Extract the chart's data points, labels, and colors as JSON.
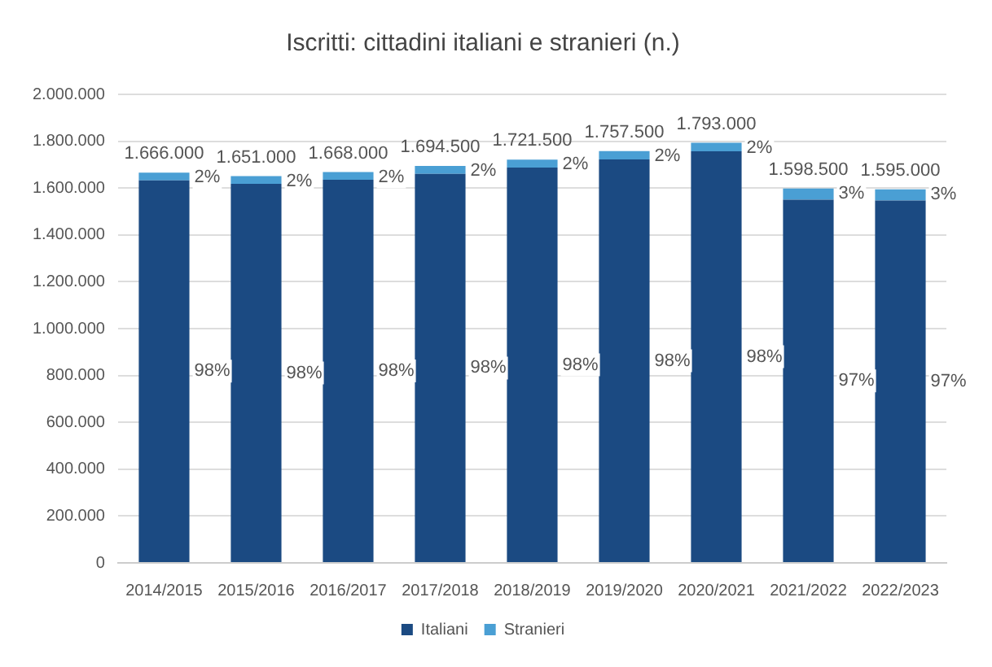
{
  "chart_data": {
    "type": "bar",
    "title": "Iscritti: cittadini italiani e stranieri (n.)",
    "stacked": true,
    "legend": "bottom",
    "grid": "y",
    "categories": [
      "2014/2015",
      "2015/2016",
      "2016/2017",
      "2017/2018",
      "2018/2019",
      "2019/2020",
      "2020/2021",
      "2021/2022",
      "2022/2023"
    ],
    "series": [
      {
        "name": "Italiani",
        "color": "#1b4a82",
        "values": [
          1633000,
          1618000,
          1635000,
          1660500,
          1687500,
          1722500,
          1757000,
          1550500,
          1547000
        ]
      },
      {
        "name": "Stranieri",
        "color": "#4a9fd4",
        "values": [
          33000,
          33000,
          33000,
          34000,
          34000,
          35000,
          36000,
          48000,
          48000
        ]
      }
    ],
    "totals": [
      "1.666.000",
      "1.651.000",
      "1.668.000",
      "1.694.500",
      "1.721.500",
      "1.757.500",
      "1.793.000",
      "1.598.500",
      "1.595.000"
    ],
    "annotations": [
      "98%",
      "98%",
      "98%",
      "98%",
      "98%",
      "98%",
      "98%",
      "97%",
      "97%",
      "2%",
      "2%",
      "2%",
      "2%",
      "2%",
      "2%",
      "2%",
      "3%",
      "3%"
    ],
    "ylim": [
      0,
      2000000
    ],
    "yticks": [
      {
        "value": 0,
        "label": "0"
      },
      {
        "value": 200000,
        "label": "200.000"
      },
      {
        "value": 400000,
        "label": "400.000"
      },
      {
        "value": 600000,
        "label": "600.000"
      },
      {
        "value": 800000,
        "label": "800.000"
      },
      {
        "value": 1000000,
        "label": "1.000.000"
      },
      {
        "value": 1200000,
        "label": "1.200.000"
      },
      {
        "value": 1400000,
        "label": "1.400.000"
      },
      {
        "value": 1600000,
        "label": "1.600.000"
      },
      {
        "value": 1800000,
        "label": "1.800.000"
      },
      {
        "value": 2000000,
        "label": "2.000.000"
      }
    ]
  }
}
